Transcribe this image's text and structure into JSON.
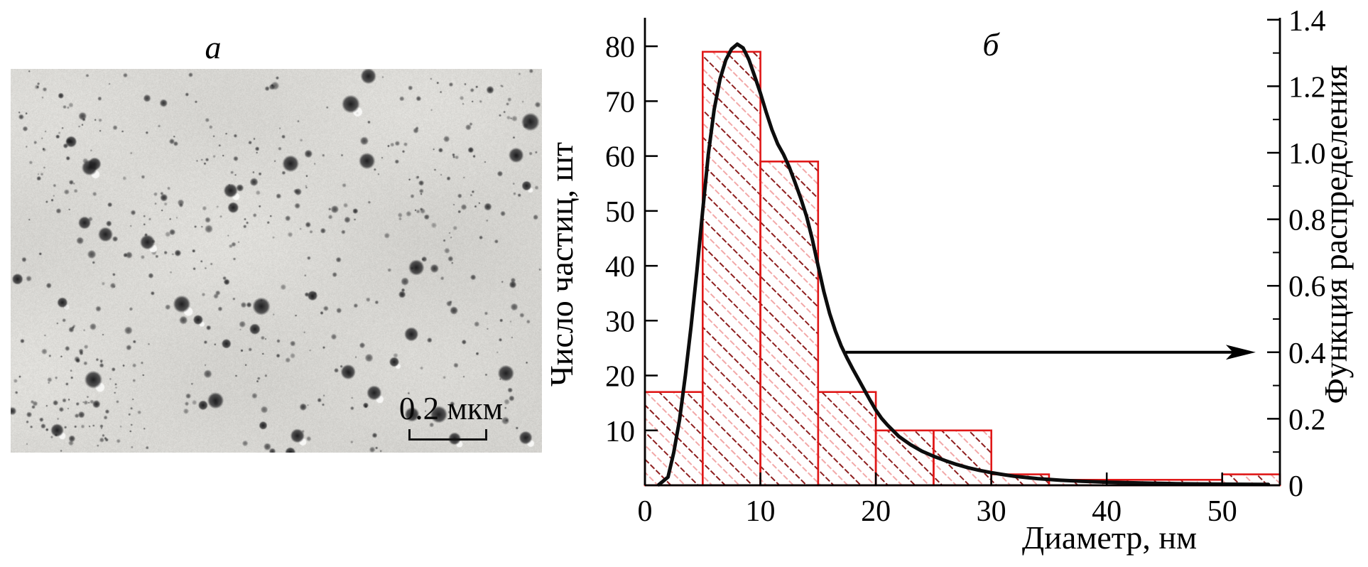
{
  "panels": {
    "a": {
      "label": "a",
      "scale_bar_label": "0.2 мкм"
    },
    "b": {
      "label": "б"
    }
  },
  "chart_data": {
    "type": "bar",
    "subtype": "histogram_with_distribution_curve",
    "title": "б",
    "xlabel": "Диаметр, нм",
    "ylabel_left": "Число частиц, шт",
    "ylabel_right": "Функция распределения",
    "xlim": [
      0,
      55
    ],
    "ylim_left": [
      0,
      85.2
    ],
    "ylim_right": [
      0,
      1.406
    ],
    "x_ticks": [
      0,
      10,
      20,
      30,
      40,
      50
    ],
    "y_ticks_left": [
      10,
      20,
      30,
      40,
      50,
      60,
      70,
      80
    ],
    "y_ticks_right": [
      0,
      0.2,
      0.4,
      0.6,
      0.8,
      1.0,
      1.2,
      1.4
    ],
    "y_minor_ticks_right": [
      0.1,
      0.3,
      0.5,
      0.7,
      0.9,
      1.1,
      1.3
    ],
    "grid": false,
    "legend": false,
    "bars": [
      {
        "from": 0,
        "to": 5,
        "count": 17
      },
      {
        "from": 5,
        "to": 10,
        "count": 79
      },
      {
        "from": 10,
        "to": 15,
        "count": 59
      },
      {
        "from": 15,
        "to": 20,
        "count": 17
      },
      {
        "from": 20,
        "to": 25,
        "count": 10
      },
      {
        "from": 25,
        "to": 30,
        "count": 10
      },
      {
        "from": 30,
        "to": 35,
        "count": 2
      },
      {
        "from": 35,
        "to": 50,
        "count": 1
      },
      {
        "from": 50,
        "to": 55,
        "count": 2
      }
    ],
    "curve": [
      [
        1.2,
        0.1
      ],
      [
        2,
        1.5
      ],
      [
        2.5,
        6
      ],
      [
        3,
        12
      ],
      [
        3.5,
        20
      ],
      [
        4,
        29
      ],
      [
        4.5,
        39
      ],
      [
        5,
        50
      ],
      [
        5.5,
        60.5
      ],
      [
        6,
        68.5
      ],
      [
        6.5,
        74
      ],
      [
        7,
        77.5
      ],
      [
        7.5,
        79.5
      ],
      [
        8,
        80.4
      ],
      [
        8.5,
        79.7
      ],
      [
        9,
        77.6
      ],
      [
        9.5,
        74.6
      ],
      [
        10,
        71.5
      ],
      [
        10.5,
        68
      ],
      [
        11,
        64.8
      ],
      [
        11.5,
        62.2
      ],
      [
        12,
        60.3
      ],
      [
        12.5,
        58
      ],
      [
        13,
        55.2
      ],
      [
        13.5,
        52.3
      ],
      [
        14,
        49
      ],
      [
        14.5,
        44.8
      ],
      [
        15,
        40
      ],
      [
        15.5,
        35.3
      ],
      [
        16,
        31.3
      ],
      [
        16.5,
        28.1
      ],
      [
        17,
        25.4
      ],
      [
        17.5,
        23.2
      ],
      [
        18,
        21.2
      ],
      [
        18.5,
        19.3
      ],
      [
        19,
        17.4
      ],
      [
        19.5,
        15.5
      ],
      [
        20,
        13.7
      ],
      [
        20.5,
        12.2
      ],
      [
        21,
        11
      ],
      [
        22,
        8.9
      ],
      [
        23,
        7.4
      ],
      [
        24,
        6.2
      ],
      [
        25,
        5.3
      ],
      [
        26,
        4.5
      ],
      [
        27,
        3.8
      ],
      [
        28,
        3.2
      ],
      [
        29,
        2.7
      ],
      [
        30,
        2.3
      ],
      [
        31,
        1.95
      ],
      [
        32,
        1.65
      ],
      [
        33,
        1.42
      ],
      [
        34,
        1.22
      ],
      [
        35,
        1.06
      ],
      [
        36,
        0.92
      ],
      [
        38,
        0.72
      ],
      [
        40,
        0.57
      ],
      [
        42,
        0.46
      ],
      [
        44,
        0.37
      ],
      [
        46,
        0.3
      ],
      [
        48,
        0.25
      ],
      [
        50,
        0.21
      ],
      [
        52,
        0.18
      ],
      [
        54,
        0.16
      ]
    ],
    "arrow": {
      "start_nm": 17.4,
      "tip_nm": 52.9,
      "level_right": 0.4
    },
    "colors": {
      "bar_edge": "#e01818",
      "hatch_dark": "#8e1f1f",
      "hatch_light": "#f2a8a8",
      "curve": "#0d0d0d",
      "axis": "#000000"
    }
  }
}
